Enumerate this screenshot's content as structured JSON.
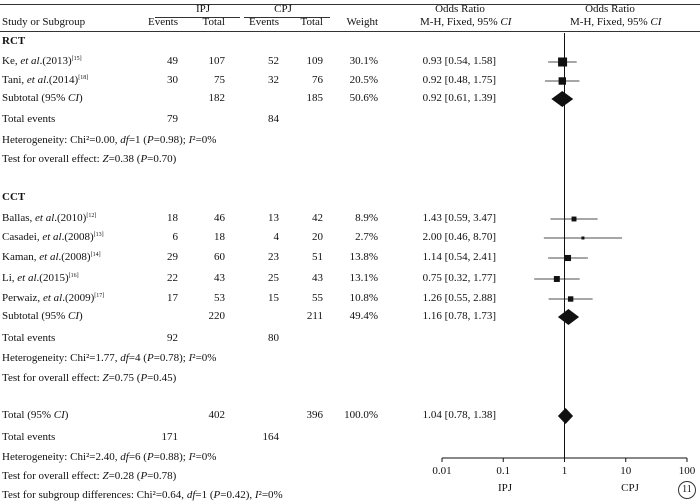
{
  "header": {
    "group_ipj": "IPJ",
    "group_cpj": "CPJ",
    "odds_ratio": "Odds Ratio",
    "col_study": "Study or Subgroup",
    "col_events": "Events",
    "col_total": "Total",
    "col_weight": "Weight",
    "col_method_prefix": "M-H, Fixed, 95% ",
    "col_method_ci": "CI"
  },
  "subgroups": [
    {
      "name": "RCT",
      "studies": [
        {
          "author": "Ke, ",
          "etal": "et al",
          "year": ".(2013)",
          "ref": "[15]",
          "ipj_events": "49",
          "ipj_total": "107",
          "cpj_events": "52",
          "cpj_total": "109",
          "weight": "30.1%",
          "or_text": "0.93 [0.54, 1.58]",
          "or": 0.93,
          "lo": 0.54,
          "hi": 1.58
        },
        {
          "author": "Tani, ",
          "etal": "et al",
          "year": ".(2014)",
          "ref": "[18]",
          "ipj_events": "30",
          "ipj_total": "75",
          "cpj_events": "32",
          "cpj_total": "76",
          "weight": "20.5%",
          "or_text": "0.92 [0.48, 1.75]",
          "or": 0.92,
          "lo": 0.48,
          "hi": 1.75
        }
      ],
      "subtotal": {
        "label": "Subtotal (95% ",
        "label_ci": "CI",
        "ipj_total": "182",
        "cpj_total": "185",
        "weight": "50.6%",
        "or_text": "0.92 [0.61, 1.39]",
        "or": 0.92,
        "lo": 0.61,
        "hi": 1.39
      },
      "total_events": {
        "label": "Total events",
        "ipj": "79",
        "cpj": "84"
      },
      "heterogeneity": "Heterogeneity: Chi²=0.00, df=1 (P=0.98); I²=0%",
      "overall_effect": "Test for overall effect: Z=0.38 (P=0.70)"
    },
    {
      "name": "CCT",
      "studies": [
        {
          "author": "Ballas, ",
          "etal": "et al",
          "year": ".(2010)",
          "ref": "[12]",
          "ipj_events": "18",
          "ipj_total": "46",
          "cpj_events": "13",
          "cpj_total": "42",
          "weight": "8.9%",
          "or_text": "1.43 [0.59, 3.47]",
          "or": 1.43,
          "lo": 0.59,
          "hi": 3.47
        },
        {
          "author": "Casadei, ",
          "etal": "et al",
          "year": ".(2008)",
          "ref": "[13]",
          "ipj_events": "6",
          "ipj_total": "18",
          "cpj_events": "4",
          "cpj_total": "20",
          "weight": "2.7%",
          "or_text": "2.00 [0.46, 8.70]",
          "or": 2.0,
          "lo": 0.46,
          "hi": 8.7
        },
        {
          "author": "Kaman, ",
          "etal": "et al",
          "year": ".(2008)",
          "ref": "[14]",
          "ipj_events": "29",
          "ipj_total": "60",
          "cpj_events": "23",
          "cpj_total": "51",
          "weight": "13.8%",
          "or_text": "1.14 [0.54, 2.41]",
          "or": 1.14,
          "lo": 0.54,
          "hi": 2.41
        },
        {
          "author": "Li, ",
          "etal": "et al",
          "year": ".(2015)",
          "ref": "[16]",
          "ipj_events": "22",
          "ipj_total": "43",
          "cpj_events": "25",
          "cpj_total": "43",
          "weight": "13.1%",
          "or_text": "0.75 [0.32, 1.77]",
          "or": 0.75,
          "lo": 0.32,
          "hi": 1.77
        },
        {
          "author": "Perwaiz, ",
          "etal": "et al",
          "year": ".(2009)",
          "ref": "[17]",
          "ipj_events": "17",
          "ipj_total": "53",
          "cpj_events": "15",
          "cpj_total": "55",
          "weight": "10.8%",
          "or_text": "1.26 [0.55, 2.88]",
          "or": 1.26,
          "lo": 0.55,
          "hi": 2.88
        }
      ],
      "subtotal": {
        "label": "Subtotal (95% ",
        "label_ci": "CI",
        "ipj_total": "220",
        "cpj_total": "211",
        "weight": "49.4%",
        "or_text": "1.16 [0.78, 1.73]",
        "or": 1.16,
        "lo": 0.78,
        "hi": 1.73
      },
      "total_events": {
        "label": "Total events",
        "ipj": "92",
        "cpj": "80"
      },
      "heterogeneity": "Heterogeneity: Chi²=1.77, df=4 (P=0.78); I²=0%",
      "overall_effect": "Test for overall effect: Z=0.75 (P=0.45)"
    }
  ],
  "overall": {
    "label": "Total (95% ",
    "label_ci": "CI",
    "ipj_total": "402",
    "cpj_total": "396",
    "weight": "100.0%",
    "or_text": "1.04 [0.78, 1.38]",
    "or": 1.04,
    "lo": 0.78,
    "hi": 1.38,
    "total_events": {
      "label": "Total events",
      "ipj": "171",
      "cpj": "164"
    },
    "heterogeneity": "Heterogeneity: Chi²=2.40, df=6 (P=0.88); I²=0%",
    "overall_effect": "Test for overall effect: Z=0.28 (P=0.78)",
    "subgroup_diff": "Test for subgroup differences: Chi²=0.64, df=1 (P=0.42), I²=0%"
  },
  "axis": {
    "ticks": [
      0.01,
      0.1,
      1,
      10,
      100
    ],
    "tick_labels": [
      "0.01",
      "0.1",
      "1",
      "10",
      "100"
    ],
    "left_label": "IPJ",
    "right_label": "CPJ"
  },
  "figure_badge": "11",
  "chart_data": {
    "type": "forest",
    "xscale": "log",
    "xlim": [
      0.01,
      100
    ],
    "reference_line": 1,
    "xlabel_left": "IPJ",
    "xlabel_right": "CPJ",
    "studies": [
      {
        "study": "Ke, et al.(2013)",
        "subgroup": "RCT",
        "or": 0.93,
        "ci": [
          0.54,
          1.58
        ],
        "weight": 30.1
      },
      {
        "study": "Tani, et al.(2014)",
        "subgroup": "RCT",
        "or": 0.92,
        "ci": [
          0.48,
          1.75
        ],
        "weight": 20.5
      },
      {
        "study": "Ballas, et al.(2010)",
        "subgroup": "CCT",
        "or": 1.43,
        "ci": [
          0.59,
          3.47
        ],
        "weight": 8.9
      },
      {
        "study": "Casadei, et al.(2008)",
        "subgroup": "CCT",
        "or": 2.0,
        "ci": [
          0.46,
          8.7
        ],
        "weight": 2.7
      },
      {
        "study": "Kaman, et al.(2008)",
        "subgroup": "CCT",
        "or": 1.14,
        "ci": [
          0.54,
          2.41
        ],
        "weight": 13.8
      },
      {
        "study": "Li, et al.(2015)",
        "subgroup": "CCT",
        "or": 0.75,
        "ci": [
          0.32,
          1.77
        ],
        "weight": 13.1
      },
      {
        "study": "Perwaiz, et al.(2009)",
        "subgroup": "CCT",
        "or": 1.26,
        "ci": [
          0.55,
          2.88
        ],
        "weight": 10.8
      }
    ],
    "pooled": [
      {
        "label": "Subtotal RCT",
        "or": 0.92,
        "ci": [
          0.61,
          1.39
        ],
        "weight": 50.6
      },
      {
        "label": "Subtotal CCT",
        "or": 1.16,
        "ci": [
          0.78,
          1.73
        ],
        "weight": 49.4
      },
      {
        "label": "Total",
        "or": 1.04,
        "ci": [
          0.78,
          1.38
        ],
        "weight": 100.0
      }
    ]
  }
}
